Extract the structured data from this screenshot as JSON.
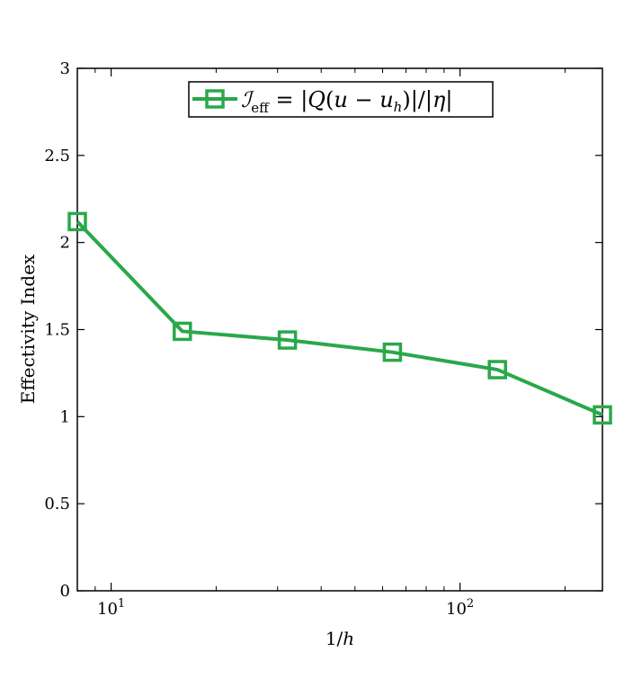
{
  "chart_data": {
    "type": "line",
    "xscale": "log",
    "xlim": [
      8,
      256
    ],
    "ylim": [
      0,
      3
    ],
    "grid": false,
    "legend_position": "top-center",
    "xlabel": "1/h",
    "ylabel": "Effectivity Index",
    "x_ticks": [
      {
        "value": 10,
        "base": "10",
        "exp": "1"
      },
      {
        "value": 100,
        "base": "10",
        "exp": "2"
      }
    ],
    "y_ticks": [
      {
        "value": 0,
        "label": "0"
      },
      {
        "value": 0.5,
        "label": "0.5"
      },
      {
        "value": 1,
        "label": "1"
      },
      {
        "value": 1.5,
        "label": "1.5"
      },
      {
        "value": 2,
        "label": "2"
      },
      {
        "value": 2.5,
        "label": "2.5"
      },
      {
        "value": 3,
        "label": "3"
      }
    ],
    "series": [
      {
        "name": "I_eff = |Q(u − u_h)|/|η|",
        "color": "#2aa84a",
        "marker": "square",
        "x": [
          8,
          16,
          32,
          64,
          128,
          256
        ],
        "y": [
          2.12,
          1.49,
          1.44,
          1.37,
          1.27,
          1.01
        ]
      }
    ]
  }
}
